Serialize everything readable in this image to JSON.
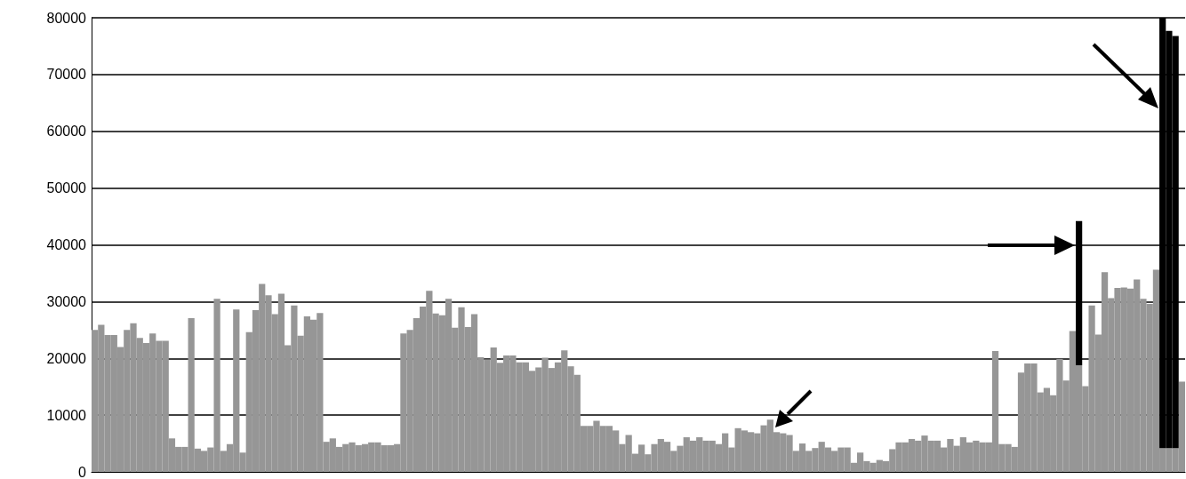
{
  "chart_data": {
    "type": "bar",
    "stacked": true,
    "tick_labels": "y",
    "grid": "y",
    "ylim": [
      0,
      80000
    ],
    "yticks": [
      0,
      10000,
      20000,
      30000,
      40000,
      50000,
      60000,
      70000,
      80000
    ],
    "categories": [
      null,
      null,
      null,
      null,
      null,
      null,
      null,
      null,
      null,
      null,
      null,
      null,
      null,
      null,
      null,
      null,
      null,
      null,
      null,
      null,
      null,
      null,
      null,
      null,
      null,
      null,
      null,
      null,
      null,
      null,
      null,
      null,
      null,
      null,
      null,
      null,
      null,
      null,
      null,
      null,
      null,
      null,
      null,
      null,
      null,
      null,
      null,
      null,
      null,
      null,
      null,
      null,
      null,
      null,
      null,
      null,
      null,
      null,
      null,
      null,
      null,
      null,
      null,
      null,
      null,
      null,
      null,
      null,
      null,
      null,
      null,
      null,
      null,
      null,
      null,
      null,
      null,
      null,
      null,
      null,
      null,
      null,
      null,
      null,
      null,
      null,
      null,
      null,
      null,
      null,
      null,
      null,
      null,
      null,
      null,
      null,
      null,
      null,
      null,
      null,
      null,
      null,
      null,
      null,
      null,
      null,
      null,
      null,
      null,
      null,
      null,
      null,
      null,
      null,
      null,
      null,
      null,
      null,
      null,
      null,
      null,
      null,
      null,
      null,
      null,
      null,
      null,
      null,
      null,
      null,
      null,
      null,
      null,
      null,
      null,
      null,
      null,
      null,
      null,
      null,
      null,
      null,
      null,
      null,
      null,
      null,
      null,
      null,
      null,
      null,
      null,
      null,
      null,
      null,
      null,
      null,
      null,
      null,
      null,
      null,
      null,
      null,
      null,
      null,
      null,
      null,
      null,
      null,
      null,
      null
    ],
    "series": [
      {
        "color": "#969696",
        "values": [
          25000,
          25900,
          24100,
          24100,
          22000,
          25000,
          26200,
          23600,
          22700,
          24400,
          23100,
          23100,
          5900,
          4400,
          4400,
          27100,
          4100,
          3700,
          4300,
          30500,
          3700,
          4900,
          28600,
          3400,
          24600,
          28500,
          33100,
          31100,
          27800,
          31400,
          22300,
          29300,
          24000,
          27400,
          26800,
          28000,
          5300,
          5900,
          4400,
          4900,
          5200,
          4700,
          4900,
          5200,
          5200,
          4700,
          4700,
          4900,
          24400,
          25000,
          27100,
          29100,
          31900,
          27900,
          27600,
          30500,
          25400,
          29000,
          25500,
          27800,
          20200,
          19800,
          21900,
          19200,
          20500,
          20500,
          19300,
          19300,
          17800,
          18400,
          20100,
          18300,
          19300,
          21400,
          18600,
          17100,
          8100,
          8100,
          9000,
          8100,
          8100,
          7300,
          4900,
          6500,
          3200,
          4800,
          3100,
          4900,
          5800,
          5300,
          3700,
          4600,
          6100,
          5500,
          6100,
          5500,
          5500,
          4900,
          6800,
          4300,
          7700,
          7300,
          7000,
          6800,
          8200,
          9200,
          7000,
          6800,
          6500,
          3700,
          5000,
          3700,
          4200,
          5300,
          4300,
          3700,
          4300,
          4300,
          1600,
          3400,
          1900,
          1600,
          2100,
          1900,
          4000,
          5200,
          5200,
          5800,
          5500,
          6400,
          5500,
          5500,
          4300,
          5800,
          4600,
          6100,
          5200,
          5500,
          5200,
          5200,
          21300,
          4900,
          4900,
          4400,
          17500,
          19100,
          19100,
          14000,
          14800,
          13500,
          19900,
          16100,
          24800,
          18800,
          15100,
          29300,
          24200,
          35200,
          30600,
          32400,
          32500,
          32300,
          33900,
          30500,
          29600,
          35600,
          4200,
          4200,
          4200,
          15900
        ]
      },
      {
        "color": "#000000",
        "values": [
          null,
          null,
          null,
          null,
          null,
          null,
          null,
          null,
          null,
          null,
          null,
          null,
          null,
          null,
          null,
          null,
          null,
          null,
          null,
          null,
          null,
          null,
          null,
          null,
          null,
          null,
          null,
          null,
          null,
          null,
          null,
          null,
          null,
          null,
          null,
          null,
          null,
          null,
          null,
          null,
          null,
          null,
          null,
          null,
          null,
          null,
          null,
          null,
          null,
          null,
          null,
          null,
          null,
          null,
          null,
          null,
          null,
          null,
          null,
          null,
          null,
          null,
          null,
          null,
          null,
          null,
          null,
          null,
          null,
          null,
          null,
          null,
          null,
          null,
          null,
          null,
          null,
          null,
          null,
          null,
          null,
          null,
          null,
          null,
          null,
          null,
          null,
          null,
          null,
          null,
          null,
          null,
          null,
          null,
          null,
          null,
          null,
          null,
          null,
          null,
          null,
          null,
          null,
          null,
          null,
          null,
          null,
          null,
          null,
          null,
          null,
          null,
          null,
          null,
          null,
          null,
          null,
          null,
          null,
          null,
          null,
          null,
          null,
          null,
          null,
          null,
          null,
          null,
          null,
          null,
          null,
          null,
          null,
          null,
          null,
          null,
          null,
          null,
          null,
          null,
          null,
          null,
          null,
          null,
          null,
          null,
          null,
          null,
          null,
          null,
          null,
          null,
          null,
          25400,
          null,
          null,
          null,
          null,
          null,
          null,
          null,
          null,
          null,
          null,
          null,
          null,
          75800,
          73500,
          72600,
          null
        ]
      }
    ]
  }
}
